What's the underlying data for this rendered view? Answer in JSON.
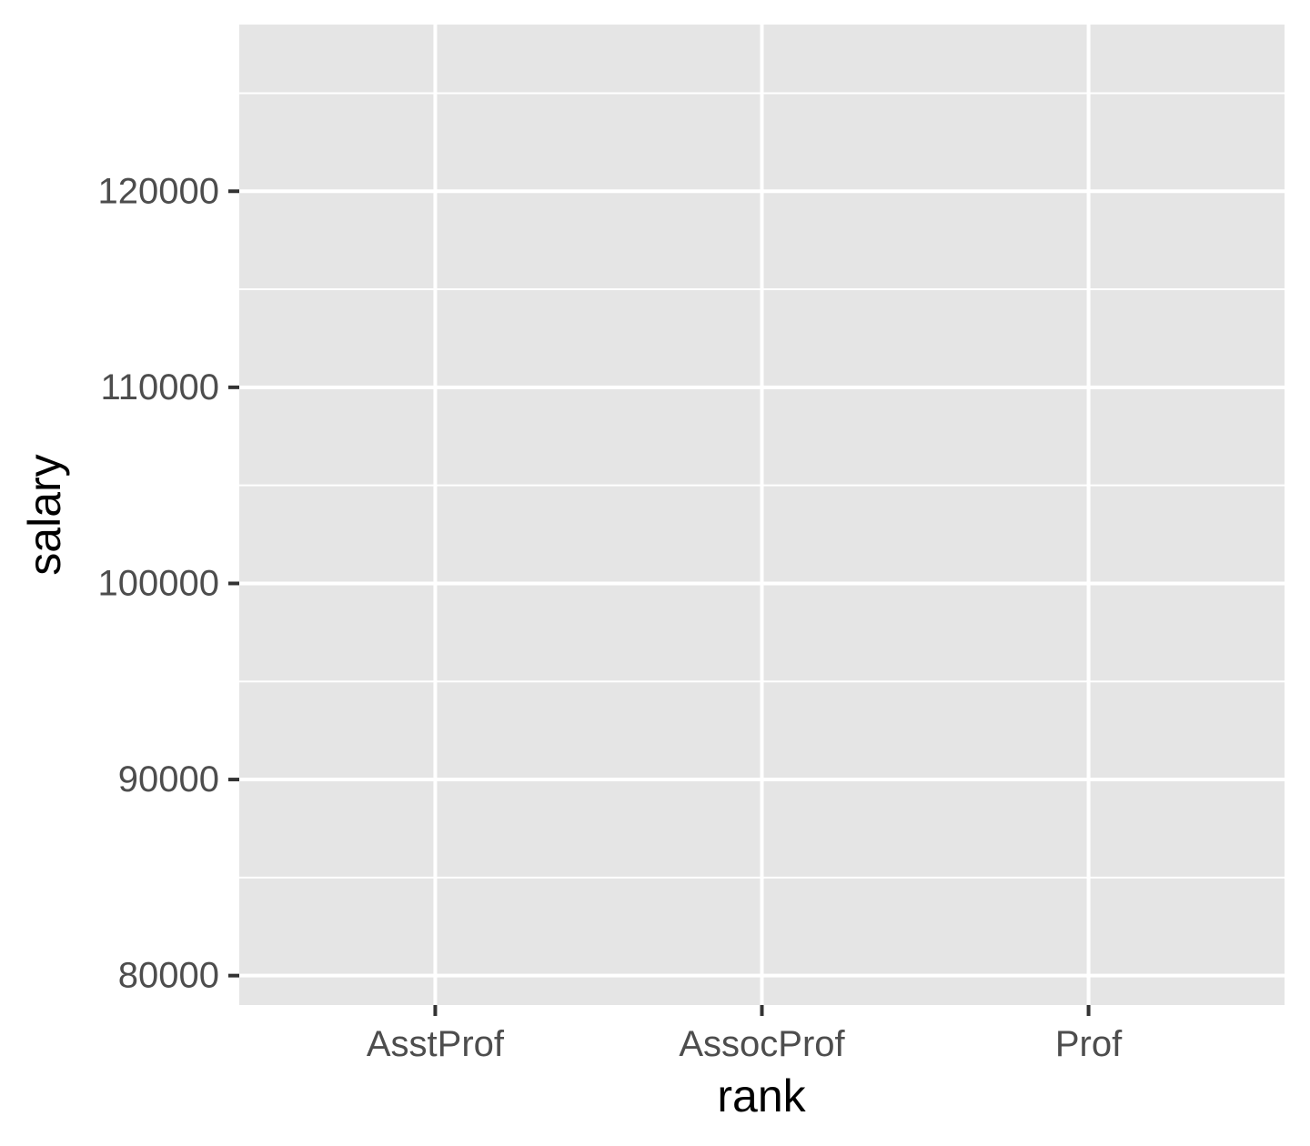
{
  "chart_data": {
    "type": "scatter",
    "title": "",
    "xlabel": "rank",
    "ylabel": "salary",
    "categories": [
      "AsstProf",
      "AssocProf",
      "Prof"
    ],
    "series": [],
    "ylim": [
      78500,
      128500
    ],
    "y_ticks": [
      80000,
      90000,
      100000,
      110000,
      120000
    ],
    "y_minor_ticks": [
      85000,
      95000,
      105000,
      115000,
      125000
    ],
    "grid": true,
    "legend": "none",
    "colors": {
      "panel_background": "#e5e5e5",
      "grid_line": "#ffffff",
      "tick_mark": "#333333",
      "tick_label": "#4d4d4d",
      "axis_title": "#000000"
    }
  }
}
